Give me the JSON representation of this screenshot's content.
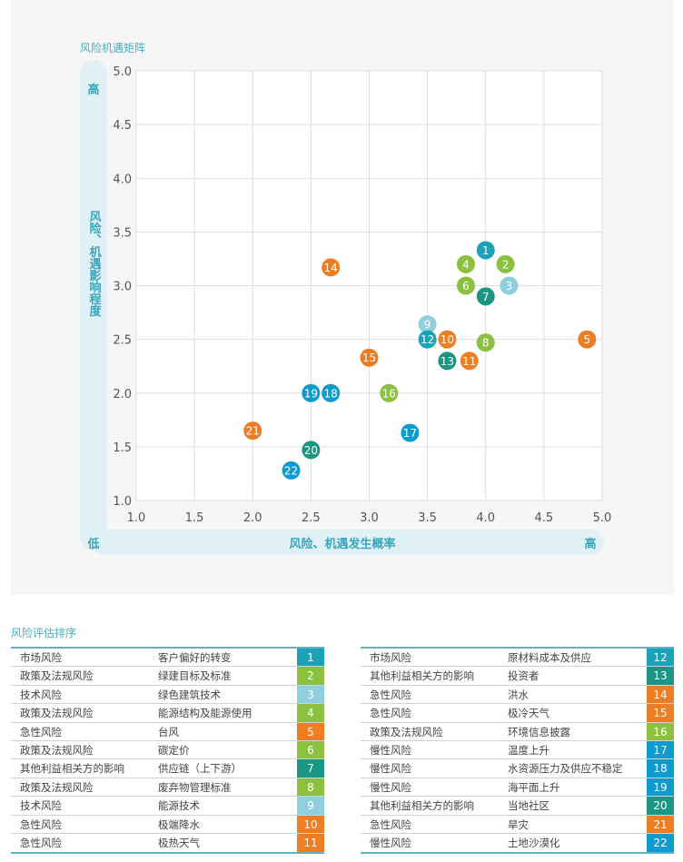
{
  "chart_data": {
    "type": "scatter",
    "title": "风险机遇矩阵",
    "xlabel": "风险、机遇发生概率",
    "ylabel": "风险、机遇影响程度",
    "x_low_label": "低",
    "x_high_label": "高",
    "y_high_label": "高",
    "xlim": [
      1.0,
      5.0
    ],
    "ylim": [
      1.0,
      5.0
    ],
    "xticks": [
      "1.0",
      "1.5",
      "2.0",
      "2.5",
      "3.0",
      "3.5",
      "4.0",
      "4.5",
      "5.0"
    ],
    "yticks": [
      "1.0",
      "1.5",
      "2.0",
      "2.5",
      "3.0",
      "3.5",
      "4.0",
      "4.5",
      "5.0"
    ],
    "grid": true,
    "points": [
      {
        "id": "1",
        "x": 4.0,
        "y": 3.33,
        "color": "#1ba2b9"
      },
      {
        "id": "2",
        "x": 4.17,
        "y": 3.2,
        "color": "#8cc03f"
      },
      {
        "id": "3",
        "x": 4.2,
        "y": 3.0,
        "color": "#8fd0de"
      },
      {
        "id": "4",
        "x": 3.83,
        "y": 3.2,
        "color": "#8cc03f"
      },
      {
        "id": "5",
        "x": 4.87,
        "y": 2.5,
        "color": "#ef7d22"
      },
      {
        "id": "6",
        "x": 3.83,
        "y": 3.0,
        "color": "#8cc03f"
      },
      {
        "id": "7",
        "x": 4.0,
        "y": 2.9,
        "color": "#1a9682"
      },
      {
        "id": "8",
        "x": 4.0,
        "y": 2.47,
        "color": "#8cc03f"
      },
      {
        "id": "9",
        "x": 3.5,
        "y": 2.64,
        "color": "#8fd0de"
      },
      {
        "id": "10",
        "x": 3.67,
        "y": 2.5,
        "color": "#ef7d22"
      },
      {
        "id": "11",
        "x": 3.86,
        "y": 2.3,
        "color": "#ef7d22"
      },
      {
        "id": "12",
        "x": 3.5,
        "y": 2.5,
        "color": "#1ba2b9"
      },
      {
        "id": "13",
        "x": 3.67,
        "y": 2.3,
        "color": "#1a9682"
      },
      {
        "id": "14",
        "x": 2.67,
        "y": 3.17,
        "color": "#ef7d22"
      },
      {
        "id": "15",
        "x": 3.0,
        "y": 2.33,
        "color": "#ef7d22"
      },
      {
        "id": "16",
        "x": 3.17,
        "y": 2.0,
        "color": "#8cc03f"
      },
      {
        "id": "17",
        "x": 3.35,
        "y": 1.63,
        "color": "#0e9bd0"
      },
      {
        "id": "18",
        "x": 2.67,
        "y": 2.0,
        "color": "#0e9bd0"
      },
      {
        "id": "19",
        "x": 2.5,
        "y": 2.0,
        "color": "#0e9bd0"
      },
      {
        "id": "20",
        "x": 2.5,
        "y": 1.47,
        "color": "#1a9682"
      },
      {
        "id": "21",
        "x": 2.0,
        "y": 1.65,
        "color": "#ef7d22"
      },
      {
        "id": "22",
        "x": 2.33,
        "y": 1.28,
        "color": "#0e9bd0"
      }
    ]
  },
  "table": {
    "title": "风险评估排序",
    "rows": [
      {
        "category": "市场风险",
        "item": "客户偏好的转变",
        "id": "1",
        "color": "#1ba2b9"
      },
      {
        "category": "政策及法规风险",
        "item": "绿建目标及标准",
        "id": "2",
        "color": "#8cc03f"
      },
      {
        "category": "技术风险",
        "item": "绿色建筑技术",
        "id": "3",
        "color": "#8fd0de"
      },
      {
        "category": "政策及法规风险",
        "item": "能源结构及能源使用",
        "id": "4",
        "color": "#8cc03f"
      },
      {
        "category": "急性风险",
        "item": "台风",
        "id": "5",
        "color": "#ef7d22"
      },
      {
        "category": "政策及法规风险",
        "item": "碳定价",
        "id": "6",
        "color": "#8cc03f"
      },
      {
        "category": "其他利益相关方的影响",
        "item": "供应链（上下游）",
        "id": "7",
        "color": "#1a9682"
      },
      {
        "category": "政策及法规风险",
        "item": "废弃物管理标准",
        "id": "8",
        "color": "#8cc03f"
      },
      {
        "category": "技术风险",
        "item": "能源技术",
        "id": "9",
        "color": "#8fd0de"
      },
      {
        "category": "急性风险",
        "item": "极端降水",
        "id": "10",
        "color": "#ef7d22"
      },
      {
        "category": "急性风险",
        "item": "极热天气",
        "id": "11",
        "color": "#ef7d22"
      },
      {
        "category": "市场风险",
        "item": "原材料成本及供应",
        "id": "12",
        "color": "#1ba2b9"
      },
      {
        "category": "其他利益相关方的影响",
        "item": "投资者",
        "id": "13",
        "color": "#1a9682"
      },
      {
        "category": "急性风险",
        "item": "洪水",
        "id": "14",
        "color": "#ef7d22"
      },
      {
        "category": "急性风险",
        "item": "极冷天气",
        "id": "15",
        "color": "#ef7d22"
      },
      {
        "category": "政策及法规风险",
        "item": "环境信息披露",
        "id": "16",
        "color": "#8cc03f"
      },
      {
        "category": "慢性风险",
        "item": "温度上升",
        "id": "17",
        "color": "#0e9bd0"
      },
      {
        "category": "慢性风险",
        "item": "水资源压力及供应不稳定",
        "id": "18",
        "color": "#0e9bd0"
      },
      {
        "category": "慢性风险",
        "item": "海平面上升",
        "id": "19",
        "color": "#0e9bd0"
      },
      {
        "category": "其他利益相关方的影响",
        "item": "当地社区",
        "id": "20",
        "color": "#1a9682"
      },
      {
        "category": "急性风险",
        "item": "旱灾",
        "id": "21",
        "color": "#ef7d22"
      },
      {
        "category": "慢性风险",
        "item": "土地沙漠化",
        "id": "22",
        "color": "#0e9bd0"
      }
    ]
  }
}
